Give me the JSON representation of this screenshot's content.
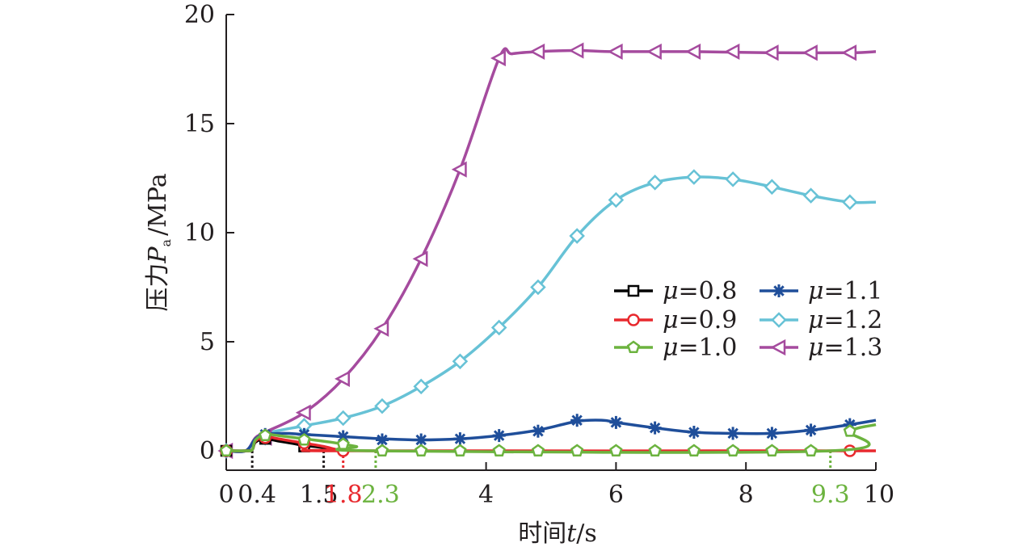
{
  "chart_data": {
    "type": "line",
    "ylabel": "压力P_a/MPa",
    "ylabel_parts": {
      "prefix": "压力",
      "symbol": "P",
      "subscript": "a",
      "unit": "/MPa"
    },
    "xlabel": "时间t/s",
    "xlabel_parts": {
      "prefix": "时间",
      "symbol": "t",
      "unit": "/s"
    },
    "xlim": [
      0,
      10
    ],
    "ylim": [
      -0.8,
      20
    ],
    "yticks": [
      0,
      5,
      10,
      15,
      20
    ],
    "xticks": [
      {
        "value": 0,
        "label": "0",
        "color": "#231f20"
      },
      {
        "value": 0.4,
        "label": "0.4",
        "color": "#231f20"
      },
      {
        "value": 1.5,
        "label": "1.5",
        "color": "#231f20"
      },
      {
        "value": 1.8,
        "label": "1.8",
        "color": "#e8292e"
      },
      {
        "value": 2.3,
        "label": "2.3",
        "color": "#6cb33f"
      },
      {
        "value": 4,
        "label": "4",
        "color": "#231f20"
      },
      {
        "value": 6,
        "label": "6",
        "color": "#231f20"
      },
      {
        "value": 8,
        "label": "8",
        "color": "#231f20"
      },
      {
        "value": 9.3,
        "label": "9.3",
        "color": "#6cb33f"
      },
      {
        "value": 10,
        "label": "10",
        "color": "#231f20"
      }
    ],
    "markers_vertical": [
      {
        "x": 0.4,
        "color": "#231f20"
      },
      {
        "x": 1.5,
        "color": "#231f20"
      },
      {
        "x": 1.8,
        "color": "#e8292e"
      },
      {
        "x": 2.3,
        "color": "#6cb33f"
      },
      {
        "x": 9.3,
        "color": "#6cb33f"
      }
    ],
    "grid": false,
    "legend_position": "center-right",
    "series": [
      {
        "name": "μ=0.8",
        "symbol": "μ",
        "value_label": "=0.8",
        "color": "#000000",
        "marker": "square",
        "line": [
          [
            0,
            0
          ],
          [
            0.3,
            0
          ],
          [
            0.4,
            0.05
          ],
          [
            0.45,
            0.4
          ],
          [
            0.6,
            0.55
          ],
          [
            0.8,
            0.45
          ],
          [
            1.0,
            0.35
          ],
          [
            1.2,
            0.25
          ],
          [
            1.5,
            0.15
          ],
          [
            1.7,
            0.05
          ],
          [
            1.8,
            0
          ]
        ],
        "markers": [
          [
            0,
            0
          ],
          [
            0.6,
            0.55
          ],
          [
            1.2,
            0.2
          ]
        ]
      },
      {
        "name": "μ=0.9",
        "symbol": "μ",
        "value_label": "=0.9",
        "color": "#e8292e",
        "marker": "circle",
        "line": [
          [
            0,
            0
          ],
          [
            0.3,
            0
          ],
          [
            0.4,
            0.05
          ],
          [
            0.45,
            0.45
          ],
          [
            0.6,
            0.65
          ],
          [
            0.8,
            0.55
          ],
          [
            1.2,
            0.35
          ],
          [
            1.5,
            0.2
          ],
          [
            1.7,
            0.05
          ],
          [
            1.8,
            0
          ],
          [
            10,
            0
          ]
        ],
        "markers": [
          [
            0,
            0
          ],
          [
            0.6,
            0.6
          ],
          [
            1.2,
            0.35
          ],
          [
            1.8,
            0
          ],
          [
            9.6,
            0
          ]
        ]
      },
      {
        "name": "μ=1.0",
        "symbol": "μ",
        "value_label": "=1.0",
        "color": "#6cb33f",
        "marker": "pentagon",
        "line": [
          [
            0,
            0
          ],
          [
            0.3,
            0
          ],
          [
            0.4,
            0.05
          ],
          [
            0.45,
            0.5
          ],
          [
            0.6,
            0.75
          ],
          [
            0.8,
            0.7
          ],
          [
            1.2,
            0.55
          ],
          [
            1.6,
            0.4
          ],
          [
            2.0,
            0.2
          ],
          [
            2.3,
            0
          ],
          [
            9.3,
            0
          ],
          [
            9.6,
            0.9
          ],
          [
            10,
            1.2
          ]
        ],
        "markers": [
          [
            0,
            0
          ],
          [
            0.6,
            0.7
          ],
          [
            1.2,
            0.5
          ],
          [
            1.8,
            0.3
          ],
          [
            2.4,
            0
          ],
          [
            3.0,
            0
          ],
          [
            3.6,
            0
          ],
          [
            4.2,
            0
          ],
          [
            4.8,
            0
          ],
          [
            5.4,
            0
          ],
          [
            6.0,
            0
          ],
          [
            6.6,
            0
          ],
          [
            7.2,
            0
          ],
          [
            7.8,
            0
          ],
          [
            8.4,
            0
          ],
          [
            9.0,
            0
          ],
          [
            9.6,
            0.9
          ]
        ]
      },
      {
        "name": "μ=1.1",
        "symbol": "μ",
        "value_label": "=1.1",
        "color": "#1f4e9a",
        "marker": "asterisk",
        "line": [
          [
            0,
            0
          ],
          [
            0.3,
            0
          ],
          [
            0.45,
            0.55
          ],
          [
            0.6,
            0.75
          ],
          [
            0.9,
            0.8
          ],
          [
            1.2,
            0.75
          ],
          [
            1.8,
            0.65
          ],
          [
            2.4,
            0.55
          ],
          [
            3.0,
            0.5
          ],
          [
            3.6,
            0.55
          ],
          [
            4.2,
            0.7
          ],
          [
            4.8,
            0.95
          ],
          [
            5.4,
            1.35
          ],
          [
            5.8,
            1.4
          ],
          [
            6.0,
            1.3
          ],
          [
            6.6,
            1.05
          ],
          [
            7.2,
            0.85
          ],
          [
            7.8,
            0.8
          ],
          [
            8.4,
            0.8
          ],
          [
            9.0,
            0.95
          ],
          [
            9.6,
            1.2
          ],
          [
            10,
            1.4
          ]
        ],
        "markers": [
          [
            0,
            0
          ],
          [
            0.6,
            0.75
          ],
          [
            1.2,
            0.75
          ],
          [
            1.8,
            0.65
          ],
          [
            2.4,
            0.5
          ],
          [
            3.0,
            0.5
          ],
          [
            3.6,
            0.55
          ],
          [
            4.2,
            0.7
          ],
          [
            4.8,
            0.9
          ],
          [
            5.4,
            1.4
          ],
          [
            6.0,
            1.3
          ],
          [
            6.6,
            1.05
          ],
          [
            7.2,
            0.85
          ],
          [
            7.8,
            0.8
          ],
          [
            8.4,
            0.8
          ],
          [
            9.0,
            0.95
          ],
          [
            9.6,
            1.2
          ]
        ]
      },
      {
        "name": "μ=1.2",
        "symbol": "μ",
        "value_label": "=1.2",
        "color": "#67c2d6",
        "marker": "diamond",
        "line": [
          [
            0,
            0
          ],
          [
            0.3,
            0
          ],
          [
            0.45,
            0.55
          ],
          [
            0.6,
            0.8
          ],
          [
            1.2,
            1.15
          ],
          [
            1.8,
            1.5
          ],
          [
            2.4,
            2.05
          ],
          [
            3.0,
            2.95
          ],
          [
            3.6,
            4.1
          ],
          [
            4.2,
            5.65
          ],
          [
            4.8,
            7.5
          ],
          [
            5.4,
            9.85
          ],
          [
            6.0,
            11.5
          ],
          [
            6.6,
            12.3
          ],
          [
            7.2,
            12.55
          ],
          [
            7.8,
            12.45
          ],
          [
            8.4,
            12.1
          ],
          [
            9.0,
            11.7
          ],
          [
            9.6,
            11.4
          ],
          [
            10,
            11.4
          ]
        ],
        "markers": [
          [
            0,
            0
          ],
          [
            0.6,
            0.6
          ],
          [
            1.2,
            1.15
          ],
          [
            1.8,
            1.5
          ],
          [
            2.4,
            2.05
          ],
          [
            3.0,
            2.95
          ],
          [
            3.6,
            4.1
          ],
          [
            4.2,
            5.65
          ],
          [
            4.8,
            7.5
          ],
          [
            5.4,
            9.85
          ],
          [
            6.0,
            11.5
          ],
          [
            6.6,
            12.3
          ],
          [
            7.2,
            12.55
          ],
          [
            7.8,
            12.45
          ],
          [
            8.4,
            12.1
          ],
          [
            9.0,
            11.7
          ],
          [
            9.6,
            11.4
          ]
        ]
      },
      {
        "name": "μ=1.3",
        "symbol": "μ",
        "value_label": "=1.3",
        "color": "#a54b9e",
        "marker": "triangle-left",
        "line": [
          [
            0,
            0
          ],
          [
            0.3,
            0
          ],
          [
            0.45,
            0.6
          ],
          [
            0.6,
            0.85
          ],
          [
            1.2,
            1.75
          ],
          [
            1.8,
            3.3
          ],
          [
            2.4,
            5.6
          ],
          [
            3.0,
            8.8
          ],
          [
            3.6,
            12.9
          ],
          [
            4.2,
            18.0
          ],
          [
            4.4,
            18.2
          ],
          [
            4.8,
            18.3
          ],
          [
            5.4,
            18.35
          ],
          [
            6.0,
            18.3
          ],
          [
            7.2,
            18.3
          ],
          [
            8.4,
            18.25
          ],
          [
            9.6,
            18.25
          ],
          [
            10,
            18.3
          ]
        ],
        "markers": [
          [
            0,
            0
          ],
          [
            0.6,
            0.6
          ],
          [
            1.2,
            1.75
          ],
          [
            1.8,
            3.3
          ],
          [
            2.4,
            5.6
          ],
          [
            3.0,
            8.8
          ],
          [
            3.6,
            12.9
          ],
          [
            4.2,
            18.0
          ],
          [
            4.8,
            18.3
          ],
          [
            5.4,
            18.35
          ],
          [
            6.0,
            18.3
          ],
          [
            6.6,
            18.3
          ],
          [
            7.2,
            18.3
          ],
          [
            7.8,
            18.3
          ],
          [
            8.4,
            18.25
          ],
          [
            9.0,
            18.25
          ],
          [
            9.6,
            18.25
          ]
        ]
      }
    ]
  }
}
